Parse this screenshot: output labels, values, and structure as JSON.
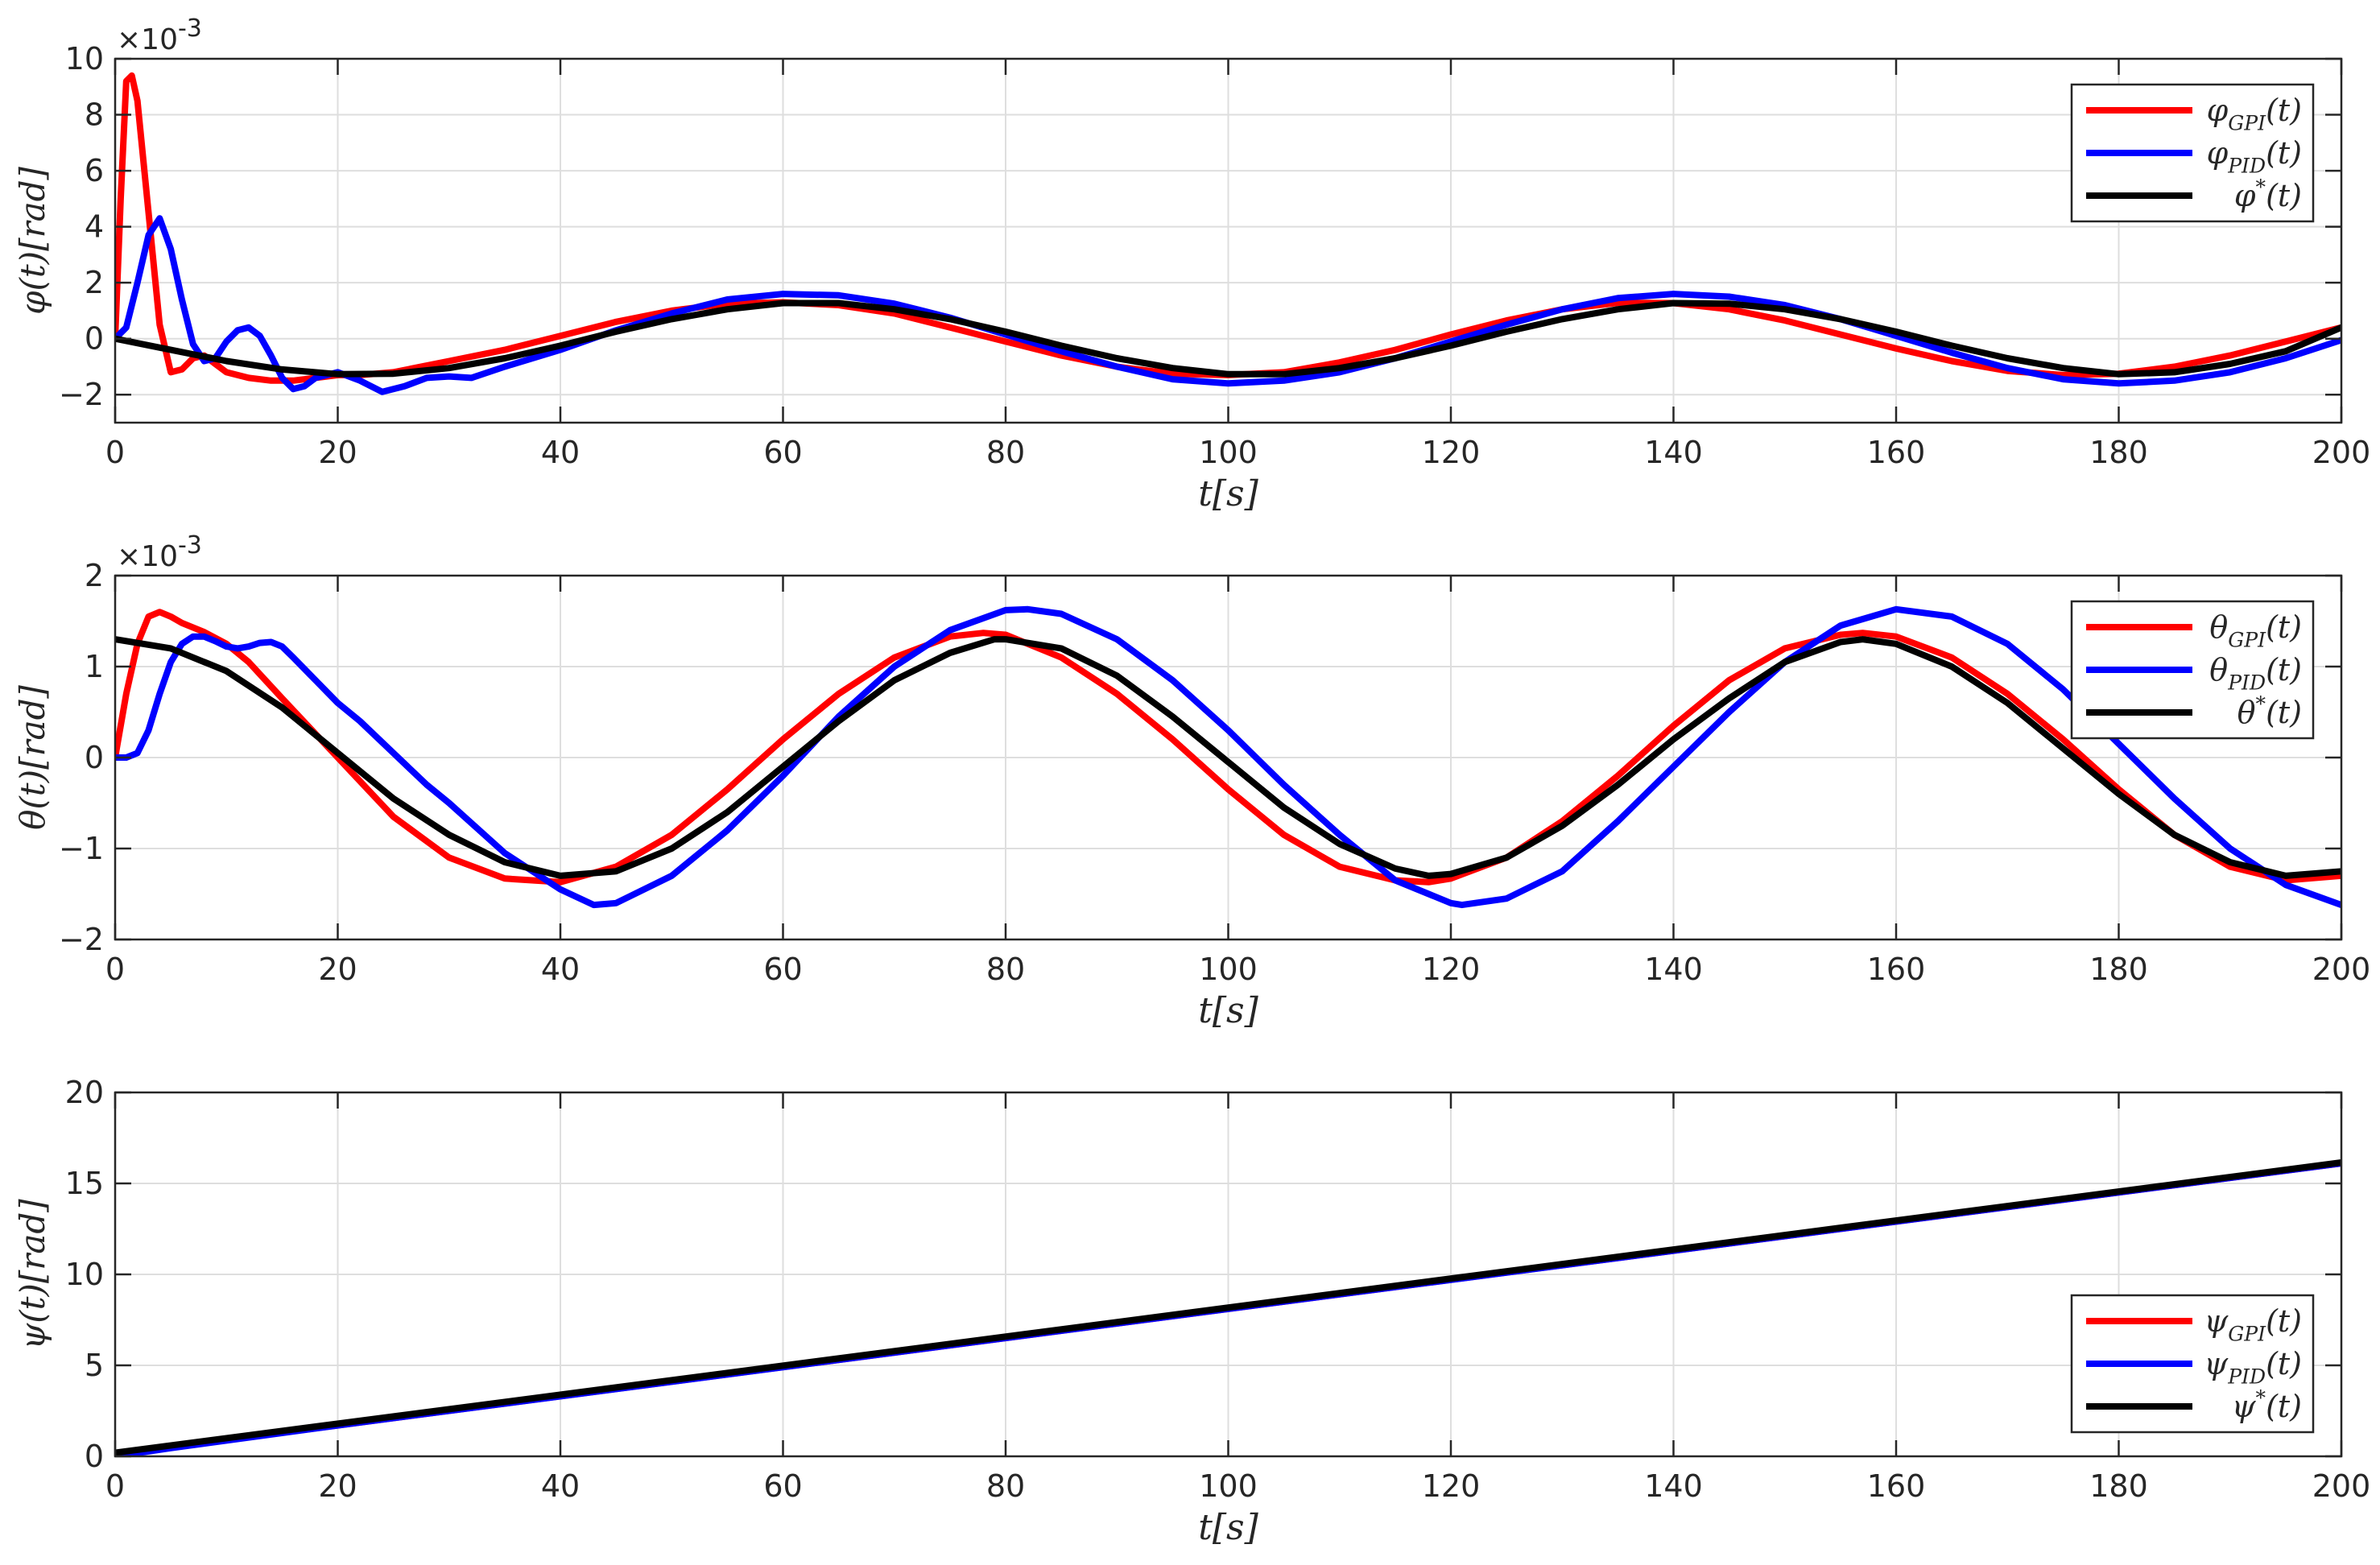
{
  "chart_data": [
    {
      "type": "line",
      "panel": "phi",
      "xlabel": "t[s]",
      "ylabel": "φ(t)[rad]",
      "exponent_label": "×10",
      "exponent_power": "-3",
      "xlim": [
        0,
        200
      ],
      "ylim": [
        -3,
        10
      ],
      "xticks": [
        0,
        20,
        40,
        60,
        80,
        100,
        120,
        140,
        160,
        180,
        200
      ],
      "yticks": [
        -2,
        0,
        2,
        4,
        6,
        8,
        10
      ],
      "grid": true,
      "legend_position": "top-right",
      "series": [
        {
          "name": "φ_GPI(t)",
          "color": "#ff0000",
          "x": [
            0,
            0.5,
            1,
            1.5,
            2,
            3,
            4,
            5,
            6,
            7,
            8,
            9,
            10,
            12,
            14,
            16,
            18,
            20,
            22,
            25,
            30,
            35,
            40,
            45,
            50,
            55,
            60,
            65,
            70,
            75,
            80,
            85,
            90,
            95,
            100,
            105,
            110,
            115,
            120,
            125,
            130,
            135,
            140,
            145,
            150,
            155,
            160,
            165,
            170,
            175,
            180,
            185,
            190,
            195,
            200
          ],
          "y": [
            0,
            5,
            9.2,
            9.4,
            8.5,
            4.5,
            0.5,
            -1.2,
            -1.1,
            -0.7,
            -0.6,
            -0.9,
            -1.2,
            -1.4,
            -1.5,
            -1.5,
            -1.4,
            -1.3,
            -1.3,
            -1.2,
            -0.8,
            -0.4,
            0.1,
            0.6,
            1.0,
            1.25,
            1.3,
            1.2,
            0.9,
            0.4,
            -0.1,
            -0.6,
            -1.0,
            -1.25,
            -1.3,
            -1.2,
            -0.85,
            -0.4,
            0.15,
            0.65,
            1.05,
            1.28,
            1.27,
            1.05,
            0.65,
            0.15,
            -0.35,
            -0.8,
            -1.15,
            -1.3,
            -1.25,
            -1.0,
            -0.6,
            -0.1,
            0.4
          ]
        },
        {
          "name": "φ_PID(t)",
          "color": "#0000ff",
          "x": [
            0,
            1,
            2,
            3,
            4,
            5,
            6,
            7,
            8,
            9,
            10,
            11,
            12,
            13,
            14,
            15,
            16,
            17,
            18,
            20,
            22,
            24,
            26,
            28,
            30,
            32,
            35,
            40,
            45,
            50,
            55,
            60,
            65,
            70,
            75,
            80,
            85,
            90,
            95,
            100,
            105,
            110,
            115,
            120,
            125,
            130,
            135,
            140,
            145,
            150,
            155,
            160,
            165,
            170,
            175,
            180,
            185,
            190,
            195,
            200
          ],
          "y": [
            0,
            0.4,
            2.0,
            3.7,
            4.3,
            3.2,
            1.4,
            -0.2,
            -0.8,
            -0.7,
            -0.1,
            0.3,
            0.4,
            0.1,
            -0.6,
            -1.4,
            -1.8,
            -1.7,
            -1.4,
            -1.2,
            -1.5,
            -1.9,
            -1.7,
            -1.4,
            -1.35,
            -1.4,
            -1.0,
            -0.4,
            0.3,
            0.9,
            1.4,
            1.6,
            1.55,
            1.25,
            0.75,
            0.15,
            -0.45,
            -1.0,
            -1.45,
            -1.6,
            -1.5,
            -1.2,
            -0.7,
            -0.1,
            0.5,
            1.05,
            1.45,
            1.6,
            1.5,
            1.2,
            0.7,
            0.1,
            -0.5,
            -1.05,
            -1.45,
            -1.6,
            -1.5,
            -1.2,
            -0.7,
            -0.05
          ]
        },
        {
          "name": "φ*(t)",
          "color": "#000000",
          "x": [
            0,
            5,
            10,
            15,
            20,
            25,
            30,
            35,
            40,
            45,
            50,
            55,
            60,
            65,
            70,
            75,
            80,
            85,
            90,
            95,
            100,
            105,
            110,
            115,
            120,
            125,
            130,
            135,
            140,
            145,
            150,
            155,
            160,
            165,
            170,
            175,
            180,
            185,
            190,
            195,
            200
          ],
          "y": [
            0,
            -0.4,
            -0.8,
            -1.1,
            -1.27,
            -1.25,
            -1.05,
            -0.7,
            -0.25,
            0.25,
            0.7,
            1.05,
            1.27,
            1.27,
            1.05,
            0.7,
            0.25,
            -0.25,
            -0.7,
            -1.05,
            -1.27,
            -1.27,
            -1.05,
            -0.7,
            -0.25,
            0.25,
            0.7,
            1.05,
            1.27,
            1.25,
            1.05,
            0.7,
            0.25,
            -0.25,
            -0.7,
            -1.05,
            -1.27,
            -1.2,
            -0.9,
            -0.45,
            0.4
          ]
        }
      ]
    },
    {
      "type": "line",
      "panel": "theta",
      "xlabel": "t[s]",
      "ylabel": "θ(t)[rad]",
      "exponent_label": "×10",
      "exponent_power": "-3",
      "xlim": [
        0,
        200
      ],
      "ylim": [
        -2,
        2
      ],
      "xticks": [
        0,
        20,
        40,
        60,
        80,
        100,
        120,
        140,
        160,
        180,
        200
      ],
      "yticks": [
        -2,
        -1,
        0,
        1,
        2
      ],
      "grid": true,
      "legend_position": "top-right",
      "series": [
        {
          "name": "θ_GPI(t)",
          "color": "#ff0000",
          "x": [
            0,
            1,
            2,
            3,
            4,
            5,
            6,
            8,
            10,
            12,
            15,
            20,
            25,
            30,
            35,
            40,
            45,
            50,
            55,
            60,
            65,
            70,
            75,
            78,
            80,
            85,
            90,
            95,
            100,
            105,
            110,
            115,
            118,
            120,
            125,
            130,
            135,
            140,
            145,
            150,
            155,
            157,
            160,
            165,
            170,
            175,
            180,
            185,
            190,
            195,
            200
          ],
          "y": [
            0,
            0.7,
            1.25,
            1.55,
            1.6,
            1.55,
            1.48,
            1.38,
            1.25,
            1.05,
            0.65,
            0.0,
            -0.65,
            -1.1,
            -1.33,
            -1.37,
            -1.2,
            -0.85,
            -0.35,
            0.2,
            0.7,
            1.1,
            1.33,
            1.37,
            1.35,
            1.1,
            0.7,
            0.2,
            -0.35,
            -0.85,
            -1.2,
            -1.35,
            -1.37,
            -1.33,
            -1.1,
            -0.7,
            -0.2,
            0.35,
            0.85,
            1.2,
            1.35,
            1.37,
            1.33,
            1.1,
            0.7,
            0.2,
            -0.35,
            -0.85,
            -1.2,
            -1.35,
            -1.3
          ]
        },
        {
          "name": "θ_PID(t)",
          "color": "#0000ff",
          "x": [
            0,
            1,
            2,
            3,
            4,
            5,
            6,
            7,
            8,
            9,
            10,
            11,
            12,
            13,
            14,
            15,
            16,
            18,
            20,
            22,
            25,
            28,
            30,
            35,
            40,
            43,
            45,
            50,
            55,
            60,
            65,
            70,
            75,
            80,
            82,
            85,
            90,
            95,
            100,
            105,
            110,
            115,
            120,
            121,
            125,
            130,
            135,
            140,
            145,
            150,
            155,
            160,
            165,
            170,
            175,
            180,
            185,
            190,
            195,
            200
          ],
          "y": [
            0,
            0,
            0.05,
            0.3,
            0.7,
            1.05,
            1.25,
            1.33,
            1.33,
            1.28,
            1.22,
            1.2,
            1.22,
            1.26,
            1.27,
            1.22,
            1.1,
            0.85,
            0.6,
            0.4,
            0.05,
            -0.3,
            -0.5,
            -1.05,
            -1.45,
            -1.62,
            -1.6,
            -1.3,
            -0.8,
            -0.2,
            0.45,
            1.0,
            1.4,
            1.62,
            1.63,
            1.58,
            1.3,
            0.85,
            0.3,
            -0.3,
            -0.85,
            -1.35,
            -1.6,
            -1.62,
            -1.55,
            -1.25,
            -0.7,
            -0.1,
            0.5,
            1.05,
            1.45,
            1.63,
            1.55,
            1.25,
            0.75,
            0.15,
            -0.45,
            -1.0,
            -1.4,
            -1.62
          ]
        },
        {
          "name": "θ*(t)",
          "color": "#000000",
          "x": [
            0,
            5,
            10,
            15,
            20,
            25,
            30,
            35,
            40,
            45,
            50,
            55,
            60,
            65,
            70,
            75,
            79,
            80,
            85,
            90,
            95,
            100,
            105,
            110,
            115,
            118,
            120,
            125,
            130,
            135,
            140,
            145,
            150,
            155,
            157,
            160,
            165,
            170,
            175,
            180,
            185,
            190,
            195,
            200
          ],
          "y": [
            1.3,
            1.2,
            0.95,
            0.55,
            0.05,
            -0.45,
            -0.85,
            -1.15,
            -1.3,
            -1.25,
            -1.0,
            -0.6,
            -0.1,
            0.4,
            0.85,
            1.15,
            1.3,
            1.3,
            1.2,
            0.9,
            0.45,
            -0.05,
            -0.55,
            -0.95,
            -1.22,
            -1.3,
            -1.28,
            -1.1,
            -0.75,
            -0.3,
            0.2,
            0.65,
            1.05,
            1.27,
            1.3,
            1.25,
            1.0,
            0.6,
            0.1,
            -0.4,
            -0.85,
            -1.15,
            -1.3,
            -1.25
          ]
        }
      ]
    },
    {
      "type": "line",
      "panel": "psi",
      "xlabel": "t[s]",
      "ylabel": "ψ(t)[rad]",
      "xlim": [
        0,
        200
      ],
      "ylim": [
        0,
        20
      ],
      "xticks": [
        0,
        20,
        40,
        60,
        80,
        100,
        120,
        140,
        160,
        180,
        200
      ],
      "yticks": [
        0,
        5,
        10,
        15,
        20
      ],
      "grid": true,
      "legend_position": "bottom-right",
      "series": [
        {
          "name": "ψ_GPI(t)",
          "color": "#ff0000",
          "x": [
            0,
            200
          ],
          "y": [
            0.1,
            16.1
          ]
        },
        {
          "name": "ψ_PID(t)",
          "color": "#0000ff",
          "x": [
            0,
            5,
            20,
            200
          ],
          "y": [
            0.0,
            0.45,
            1.7,
            16.1
          ]
        },
        {
          "name": "ψ*(t)",
          "color": "#000000",
          "x": [
            0,
            200
          ],
          "y": [
            0.2,
            16.15
          ]
        }
      ]
    }
  ]
}
